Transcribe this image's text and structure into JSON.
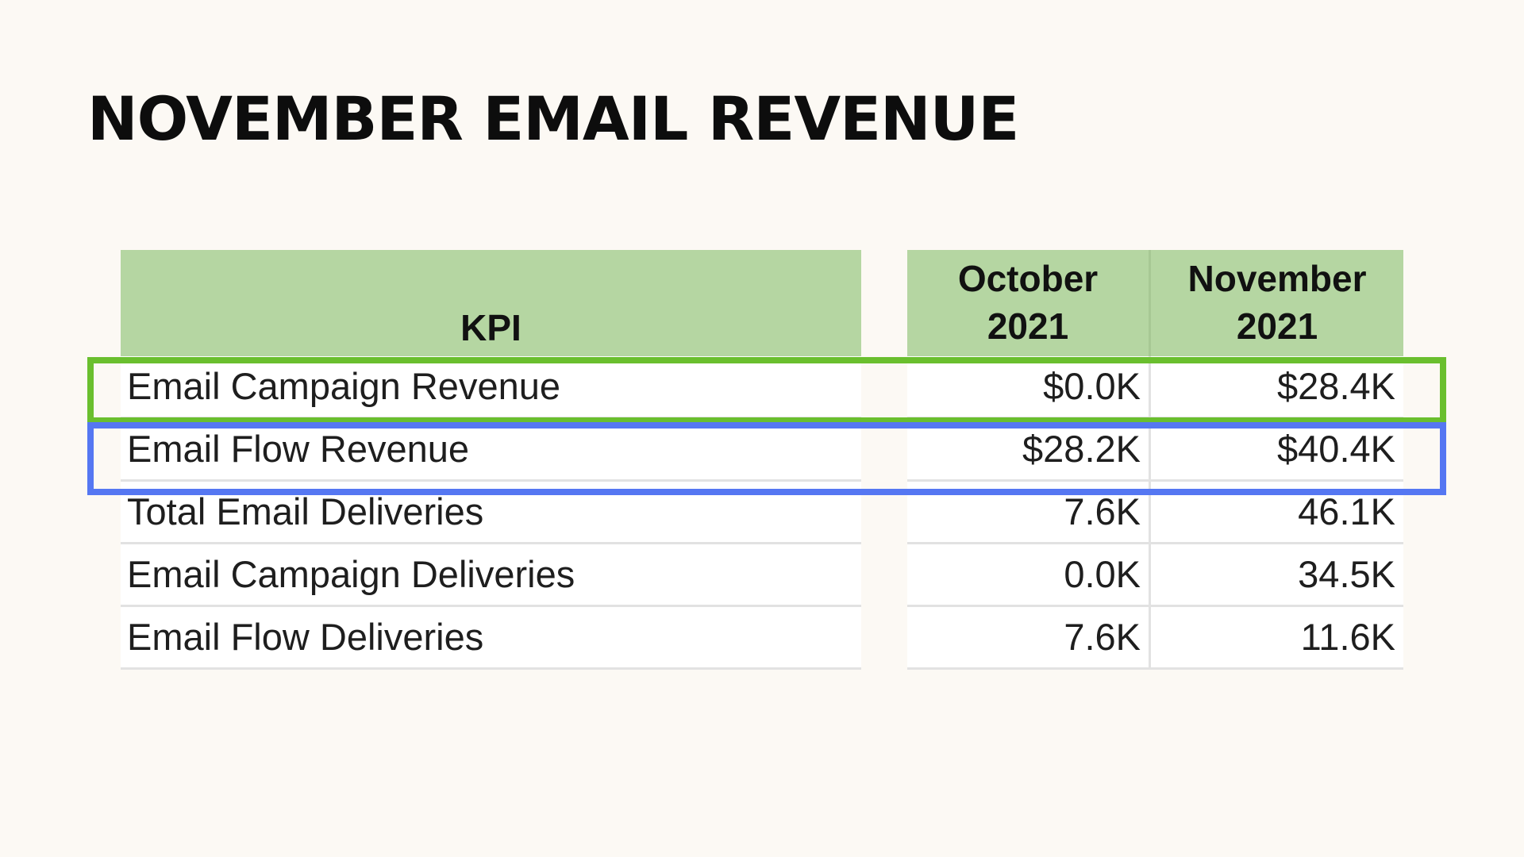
{
  "title": "NOVEMBER EMAIL REVENUE",
  "table": {
    "kpi_header": "KPI",
    "periods": [
      {
        "line1": "October",
        "line2": "2021"
      },
      {
        "line1": "November",
        "line2": "2021"
      }
    ],
    "rows": [
      {
        "kpi": "Email Campaign Revenue",
        "oct": "$0.0K",
        "nov": "$28.4K"
      },
      {
        "kpi": "Email Flow Revenue",
        "oct": "$28.2K",
        "nov": "$40.4K"
      },
      {
        "kpi": "Total Email Deliveries",
        "oct": "7.6K",
        "nov": "46.1K"
      },
      {
        "kpi": "Email Campaign Deliveries",
        "oct": "0.0K",
        "nov": "34.5K"
      },
      {
        "kpi": "Email Flow Deliveries",
        "oct": "7.6K",
        "nov": "11.6K"
      }
    ]
  },
  "chart_data": {
    "type": "table",
    "title": "NOVEMBER EMAIL REVENUE",
    "columns": [
      "KPI",
      "October 2021",
      "November 2021"
    ],
    "rows": [
      [
        "Email Campaign Revenue",
        "$0.0K",
        "$28.4K"
      ],
      [
        "Email Flow Revenue",
        "$28.2K",
        "$40.4K"
      ],
      [
        "Total Email Deliveries",
        "7.6K",
        "46.1K"
      ],
      [
        "Email Campaign Deliveries",
        "0.0K",
        "34.5K"
      ],
      [
        "Email Flow Deliveries",
        "7.6K",
        "11.6K"
      ]
    ],
    "highlights": [
      {
        "row": "Email Campaign Revenue",
        "color": "#6abf2e"
      },
      {
        "row": "Email Flow Revenue",
        "color": "#5577f2"
      }
    ]
  },
  "colors": {
    "background": "#fcf9f4",
    "header_fill": "#b5d6a2",
    "highlight_green": "#6abf2e",
    "highlight_blue": "#5577f2"
  }
}
